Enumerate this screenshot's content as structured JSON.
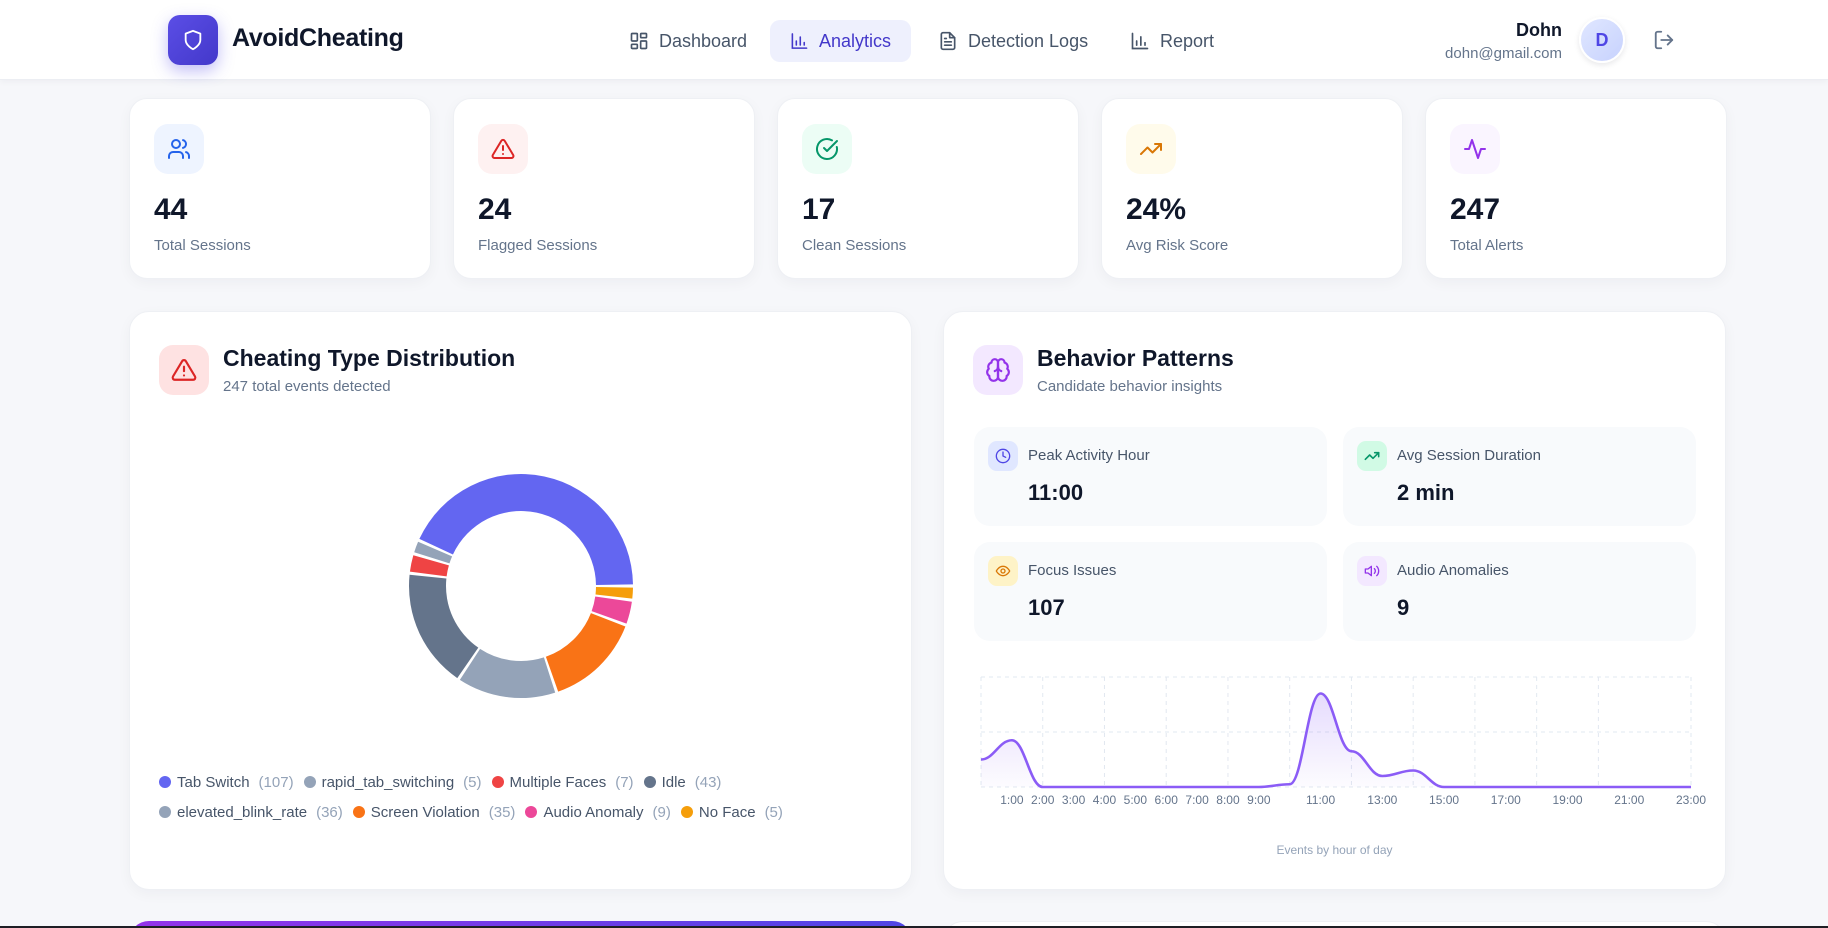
{
  "app": {
    "brand": "AvoidCheating",
    "brand_color": "#4f46e5"
  },
  "nav": {
    "items": [
      {
        "label": "Dashboard",
        "icon": "layout-grid-icon",
        "active": false
      },
      {
        "label": "Analytics",
        "icon": "bar-chart-icon",
        "active": true
      },
      {
        "label": "Detection Logs",
        "icon": "file-text-icon",
        "active": false
      },
      {
        "label": "Report",
        "icon": "bar-chart-icon",
        "active": false
      }
    ]
  },
  "user": {
    "name": "Dohn",
    "email": "dohn@gmail.com",
    "avatar_initial": "D",
    "logout_icon": "log-out-icon"
  },
  "stats": [
    {
      "value": "44",
      "label": "Total Sessions",
      "icon": "users-icon",
      "color": "#2563eb",
      "bg": "#eef4ff"
    },
    {
      "value": "24",
      "label": "Flagged Sessions",
      "icon": "alert-triangle-icon",
      "color": "#dc2626",
      "bg": "#fef1f1"
    },
    {
      "value": "17",
      "label": "Clean Sessions",
      "icon": "check-circle-icon",
      "color": "#059669",
      "bg": "#ecfdf5"
    },
    {
      "value": "24%",
      "label": "Avg Risk Score",
      "icon": "trending-up-icon",
      "color": "#d97706",
      "bg": "#fffbeb"
    },
    {
      "value": "247",
      "label": "Total Alerts",
      "icon": "activity-icon",
      "color": "#9333ea",
      "bg": "#faf5ff"
    }
  ],
  "distribution": {
    "title": "Cheating Type Distribution",
    "subtitle": "247 total events detected",
    "icon": "alert-triangle-icon"
  },
  "behavior": {
    "title": "Behavior Patterns",
    "subtitle": "Candidate behavior insights",
    "icon": "brain-icon",
    "insights": [
      {
        "label": "Peak Activity Hour",
        "value": "11:00",
        "icon": "clock-icon",
        "color": "#4f46e5",
        "bg": "#e0e7ff"
      },
      {
        "label": "Avg Session Duration",
        "value": "2 min",
        "icon": "trending-up-icon",
        "color": "#059669",
        "bg": "#d1fae5"
      },
      {
        "label": "Focus Issues",
        "value": "107",
        "icon": "eye-icon",
        "color": "#d97706",
        "bg": "#fef3c7"
      },
      {
        "label": "Audio Anomalies",
        "value": "9",
        "icon": "volume-icon",
        "color": "#9333ea",
        "bg": "#f3e8ff"
      }
    ],
    "caption": "Events by hour of day"
  },
  "chart_data": [
    {
      "type": "pie",
      "donut": true,
      "title": "Cheating Type Distribution",
      "total": 247,
      "direction": "counterclockwise-from-3-oclock",
      "legend_position": "bottom",
      "slices": [
        {
          "label": "Tab Switch",
          "value": 107,
          "color": "#6366f1"
        },
        {
          "label": "rapid_tab_switching",
          "value": 5,
          "color": "#94a3b8"
        },
        {
          "label": "Multiple Faces",
          "value": 7,
          "color": "#ef4444"
        },
        {
          "label": "Idle",
          "value": 43,
          "color": "#64748b"
        },
        {
          "label": "elevated_blink_rate",
          "value": 36,
          "color": "#94a3b8"
        },
        {
          "label": "Screen Violation",
          "value": 35,
          "color": "#f97316"
        },
        {
          "label": "Audio Anomaly",
          "value": 9,
          "color": "#ec4899"
        },
        {
          "label": "No Face",
          "value": 5,
          "color": "#f59e0b"
        }
      ]
    },
    {
      "type": "area",
      "title": "Events by hour of day",
      "xlabel": "",
      "ylabel": "",
      "grid": true,
      "color": "#8b5cf6",
      "ylim": [
        0,
        40
      ],
      "x": [
        "0:00",
        "1:00",
        "2:00",
        "3:00",
        "4:00",
        "5:00",
        "6:00",
        "7:00",
        "8:00",
        "9:00",
        "10:00",
        "11:00",
        "12:00",
        "13:00",
        "14:00",
        "15:00",
        "16:00",
        "17:00",
        "18:00",
        "19:00",
        "20:00",
        "21:00",
        "22:00",
        "23:00"
      ],
      "values": [
        10,
        17,
        0,
        0,
        0,
        0,
        0,
        0,
        0,
        0,
        1,
        34,
        13,
        4,
        6,
        0,
        0,
        0,
        0,
        0,
        0,
        0,
        0,
        0
      ],
      "tick_labels": [
        "1:00",
        "2:00",
        "3:00",
        "4:00",
        "5:00",
        "6:00",
        "7:00",
        "8:00",
        "9:00",
        "11:00",
        "13:00",
        "15:00",
        "17:00",
        "19:00",
        "21:00",
        "23:00"
      ]
    }
  ]
}
